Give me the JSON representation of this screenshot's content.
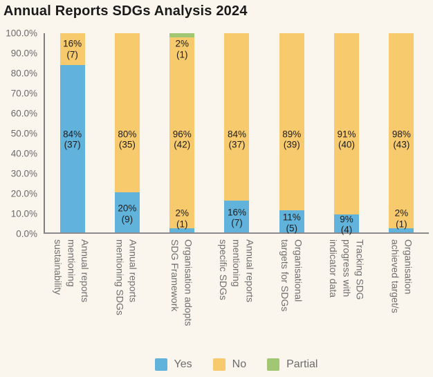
{
  "title": "Annual Reports SDGs Analysis 2024",
  "colors": {
    "yes": "#62B3DC",
    "no": "#F8CA6E",
    "partial": "#A2C774",
    "background": "#FAF6EE",
    "axis": "#7E7E7E",
    "tick_text": "#6B6B6B",
    "segment_label_text": "#1B1B1B",
    "category_text": "#6E6E6E"
  },
  "chart_data": {
    "type": "bar",
    "stacked": true,
    "title": "Annual Reports SDGs Analysis 2024",
    "ylim": [
      0,
      100
    ],
    "grid": false,
    "legend_position": "bottom",
    "y_ticks": [
      "100.0%",
      "90.0%",
      "80.0%",
      "70.0%",
      "60.0%",
      "50.0%",
      "40.0%",
      "30.0%",
      "20.0%",
      "10.0%",
      "0.0%"
    ],
    "categories": [
      [
        "Annual reports",
        "mentioning",
        "sustainability"
      ],
      [
        "Annual reports",
        "mentioning SDGs"
      ],
      [
        "Organisation adopts",
        "SDG Framework"
      ],
      [
        "Annual reports",
        "mentioning",
        "specific SDGs"
      ],
      [
        "Organisational",
        "targets for SDGs"
      ],
      [
        "Tracking SDG",
        "progress with",
        "indicator data"
      ],
      [
        "Organisation",
        "achieved target/s"
      ]
    ],
    "series": [
      {
        "name": "Yes",
        "color_key": "yes",
        "values": [
          84,
          20,
          2,
          16,
          11,
          9,
          2
        ],
        "counts": [
          37,
          9,
          1,
          7,
          5,
          4,
          1
        ]
      },
      {
        "name": "No",
        "color_key": "no",
        "values": [
          16,
          80,
          96,
          84,
          89,
          91,
          98
        ],
        "counts": [
          7,
          35,
          42,
          37,
          39,
          40,
          43
        ]
      },
      {
        "name": "Partial",
        "color_key": "partial",
        "values": [
          0,
          0,
          2,
          0,
          0,
          0,
          0
        ],
        "counts": [
          0,
          0,
          1,
          0,
          0,
          0,
          0
        ]
      }
    ]
  }
}
